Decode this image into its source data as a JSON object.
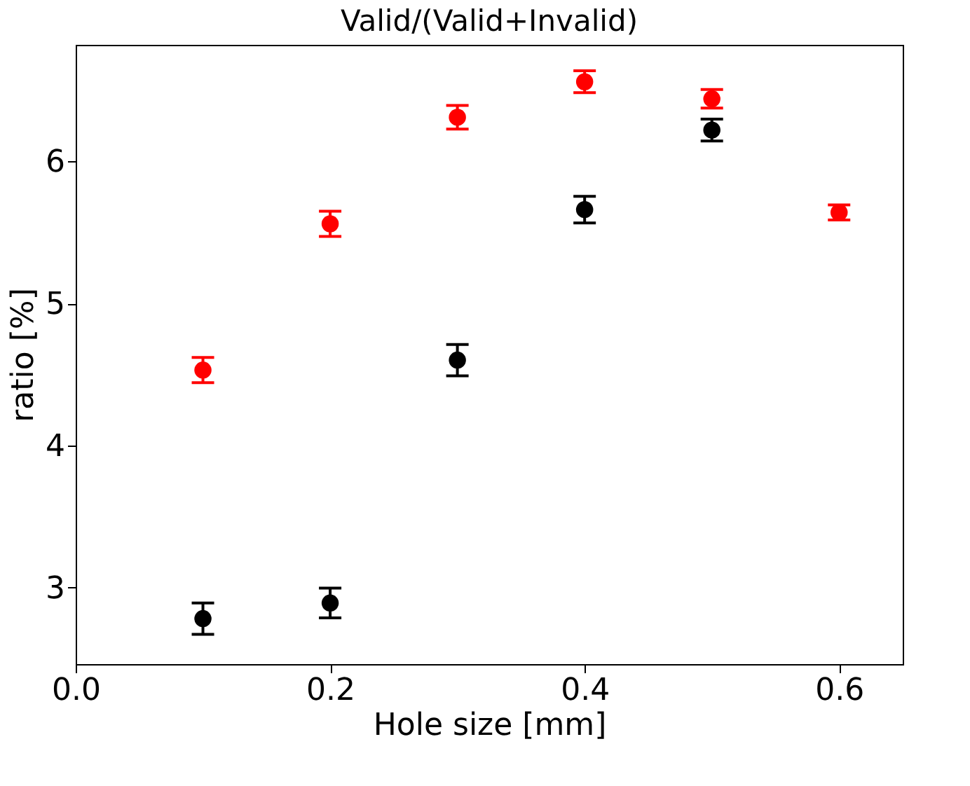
{
  "chart_data": {
    "type": "scatter",
    "title": "Valid/(Valid+Invalid)",
    "xlabel": "Hole size [mm]",
    "ylabel": "ratio [%]",
    "xlim": [
      0,
      0.65
    ],
    "xticks": [
      {
        "value": 0,
        "label": "0.0"
      },
      0.2,
      0.4,
      0.6
    ],
    "ylim": [
      2.46,
      6.82
    ],
    "yticks": [
      3,
      4,
      5,
      6
    ],
    "grid": false,
    "marker": "circle",
    "series": [
      {
        "color": "#000000",
        "x": [
          0.1,
          0.2,
          0.3,
          0.4,
          0.5
        ],
        "values": [
          2.78,
          2.89,
          4.6,
          5.66,
          6.22
        ],
        "errors": [
          0.11,
          0.105,
          0.11,
          0.094,
          0.077
        ]
      },
      {
        "color": "#ff0000",
        "x": [
          0.1,
          0.2,
          0.3,
          0.4,
          0.5,
          0.6
        ],
        "values": [
          4.53,
          5.56,
          6.31,
          6.56,
          6.44,
          5.64
        ],
        "errors": [
          0.089,
          0.089,
          0.083,
          0.077,
          0.065,
          0.053
        ]
      }
    ]
  }
}
